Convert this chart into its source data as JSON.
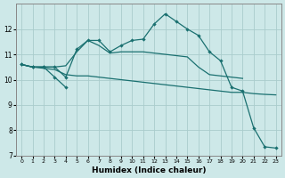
{
  "xlabel": "Humidex (Indice chaleur)",
  "bg_color": "#cde8e8",
  "grid_color": "#aacccc",
  "line_color": "#1a7070",
  "xlim": [
    -0.5,
    23.5
  ],
  "ylim": [
    7,
    13
  ],
  "yticks": [
    7,
    8,
    9,
    10,
    11,
    12
  ],
  "xticks": [
    0,
    1,
    2,
    3,
    4,
    5,
    6,
    7,
    8,
    9,
    10,
    11,
    12,
    13,
    14,
    15,
    16,
    17,
    18,
    19,
    20,
    21,
    22,
    23
  ],
  "line_peak": {
    "x": [
      0,
      1,
      2,
      3,
      4,
      5,
      6,
      7,
      8,
      9,
      10,
      11,
      12,
      13,
      14,
      15,
      16,
      17,
      18,
      19,
      20,
      21,
      22,
      23
    ],
    "y": [
      10.6,
      10.5,
      10.5,
      10.5,
      10.1,
      11.2,
      11.55,
      11.55,
      11.1,
      11.35,
      11.55,
      11.6,
      12.2,
      12.6,
      12.3,
      12.0,
      11.75,
      11.1,
      10.75,
      9.7,
      9.55,
      8.1,
      7.35,
      7.3
    ]
  },
  "line_dip": {
    "x": [
      0,
      1,
      2,
      3,
      4
    ],
    "y": [
      10.6,
      10.5,
      10.5,
      10.1,
      9.7
    ]
  },
  "line_upper_flat": {
    "x": [
      0,
      1,
      2,
      3,
      4,
      5,
      6,
      7,
      8,
      9,
      10,
      11,
      12,
      13,
      14,
      15,
      16,
      17,
      18,
      19,
      20
    ],
    "y": [
      10.6,
      10.5,
      10.5,
      10.5,
      10.55,
      11.1,
      11.55,
      11.35,
      11.05,
      11.1,
      11.1,
      11.1,
      11.05,
      11.0,
      10.95,
      10.9,
      10.5,
      10.2,
      10.15,
      10.1,
      10.05
    ]
  },
  "line_lower_diag": {
    "x": [
      0,
      1,
      2,
      3,
      4,
      5,
      6,
      7,
      8,
      9,
      10,
      11,
      12,
      13,
      14,
      15,
      16,
      17,
      18,
      19,
      20,
      21,
      22,
      23
    ],
    "y": [
      10.6,
      10.5,
      10.45,
      10.4,
      10.2,
      10.15,
      10.15,
      10.1,
      10.05,
      10.0,
      9.95,
      9.9,
      9.85,
      9.8,
      9.75,
      9.7,
      9.65,
      9.6,
      9.55,
      9.5,
      9.5,
      9.45,
      9.42,
      9.4
    ]
  }
}
